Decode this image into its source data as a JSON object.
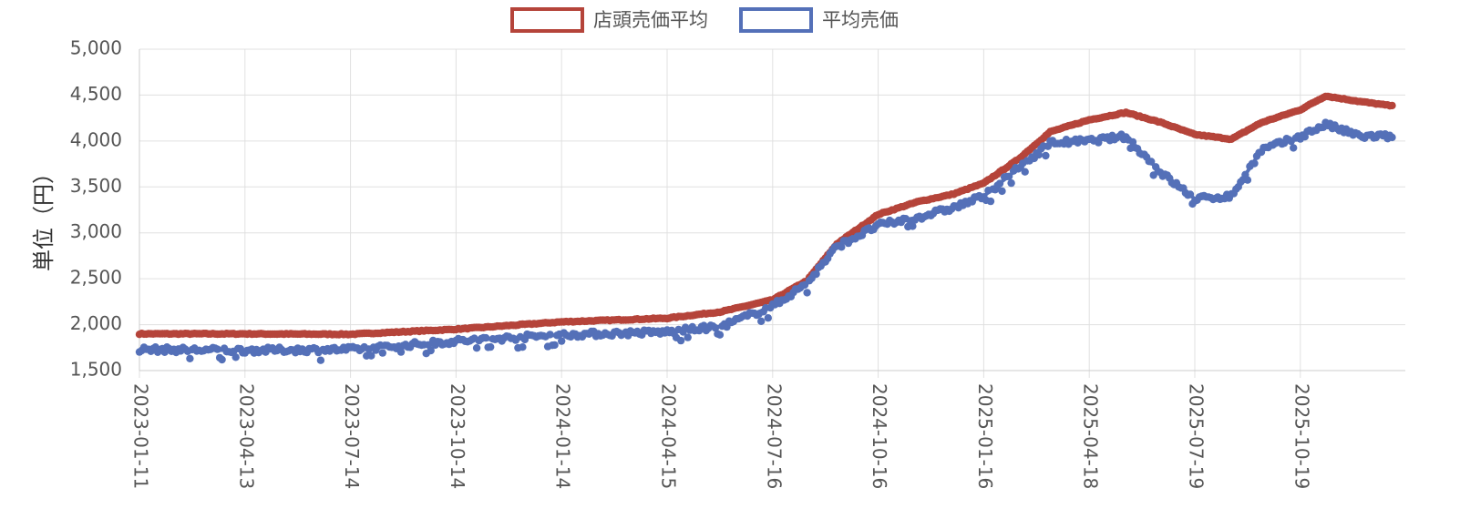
{
  "chart_data": {
    "type": "line",
    "ylabel": "単位（円）",
    "ylim": [
      1500,
      5000
    ],
    "yticks": [
      "5,000",
      "4,500",
      "4,000",
      "3,500",
      "3,000",
      "2,500",
      "2,000",
      "1,500"
    ],
    "xticks": [
      "2023-01-11",
      "2023-04-13",
      "2023-07-14",
      "2023-10-14",
      "2024-01-14",
      "2024-04-15",
      "2024-07-16",
      "2024-10-16",
      "2025-01-16",
      "2025-04-18",
      "2025-07-19",
      "2025-10-19"
    ],
    "grid": true,
    "legend_position": "top-center",
    "series": [
      {
        "name": "店頭売価平均",
        "color": "#b5443a",
        "points": [
          [
            "2023-01-11",
            1900
          ],
          [
            "2023-04-13",
            1900
          ],
          [
            "2023-07-14",
            1895
          ],
          [
            "2023-10-14",
            1950
          ],
          [
            "2024-01-14",
            2030
          ],
          [
            "2024-04-15",
            2070
          ],
          [
            "2024-06-01",
            2140
          ],
          [
            "2024-07-16",
            2270
          ],
          [
            "2024-08-15",
            2480
          ],
          [
            "2024-09-10",
            2880
          ],
          [
            "2024-10-16",
            3200
          ],
          [
            "2024-11-20",
            3340
          ],
          [
            "2024-12-20",
            3420
          ],
          [
            "2025-01-16",
            3540
          ],
          [
            "2025-02-15",
            3800
          ],
          [
            "2025-03-15",
            4100
          ],
          [
            "2025-04-18",
            4230
          ],
          [
            "2025-05-20",
            4310
          ],
          [
            "2025-06-20",
            4200
          ],
          [
            "2025-07-19",
            4070
          ],
          [
            "2025-08-20",
            4020
          ],
          [
            "2025-09-15",
            4200
          ],
          [
            "2025-10-19",
            4340
          ],
          [
            "2025-11-10",
            4490
          ],
          [
            "2025-12-10",
            4430
          ],
          [
            "2026-01-08",
            4380
          ]
        ]
      },
      {
        "name": "平均売価",
        "color": "#5470b8",
        "points": [
          [
            "2023-01-11",
            1730
          ],
          [
            "2023-04-13",
            1720
          ],
          [
            "2023-07-14",
            1730
          ],
          [
            "2023-10-14",
            1820
          ],
          [
            "2024-01-14",
            1890
          ],
          [
            "2024-04-15",
            1920
          ],
          [
            "2024-06-01",
            1980
          ],
          [
            "2024-07-16",
            2200
          ],
          [
            "2024-08-15",
            2450
          ],
          [
            "2024-09-10",
            2850
          ],
          [
            "2024-10-16",
            3080
          ],
          [
            "2024-11-20",
            3170
          ],
          [
            "2024-12-20",
            3270
          ],
          [
            "2025-01-16",
            3400
          ],
          [
            "2025-02-15",
            3700
          ],
          [
            "2025-03-15",
            3980
          ],
          [
            "2025-04-18",
            4000
          ],
          [
            "2025-05-20",
            4050
          ],
          [
            "2025-06-20",
            3650
          ],
          [
            "2025-07-19",
            3370
          ],
          [
            "2025-08-20",
            3400
          ],
          [
            "2025-09-15",
            3900
          ],
          [
            "2025-10-19",
            4050
          ],
          [
            "2025-11-10",
            4180
          ],
          [
            "2025-12-10",
            4050
          ],
          [
            "2026-01-08",
            4050
          ]
        ]
      }
    ]
  }
}
